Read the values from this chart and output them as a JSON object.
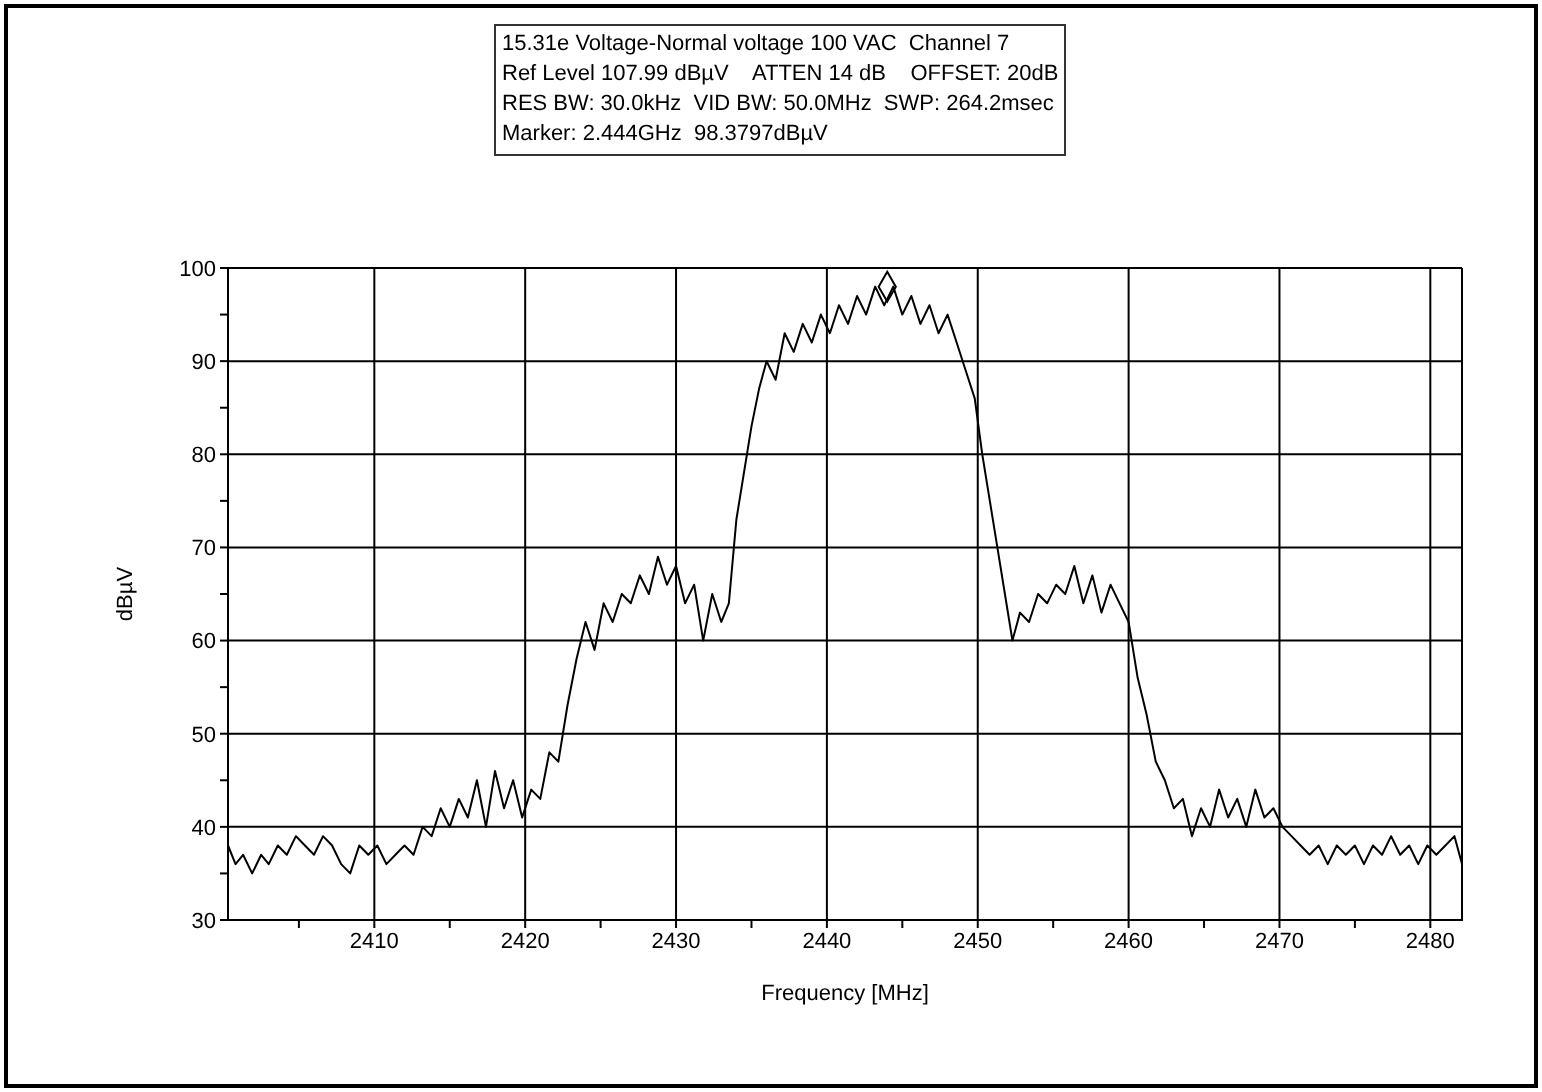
{
  "chart_data": {
    "type": "line",
    "title": "15.31e Voltage-Normal voltage 100 VAC  Channel 7",
    "annotations": [
      "Ref Level 107.99 dBµV    ATTEN 14 dB    OFFSET: 20dB",
      "RES BW: 30.0kHz  VID BW: 50.0MHz  SWP: 264.2msec",
      "Marker: 2.444GHz  98.3797dBµV"
    ],
    "xlabel": "Frequency [MHz]",
    "ylabel": "dBµV",
    "xlim": [
      2400.3,
      2482.1
    ],
    "ylim": [
      30,
      100
    ],
    "xticks": [
      {
        "value": 2405,
        "label": null
      },
      2410,
      {
        "value": 2415,
        "label": null
      },
      2420,
      {
        "value": 2425,
        "label": null
      },
      2430,
      {
        "value": 2435,
        "label": null
      },
      2440,
      {
        "value": 2445,
        "label": null
      },
      2450,
      {
        "value": 2455,
        "label": null
      },
      2460,
      {
        "value": 2465,
        "label": null
      },
      2470,
      {
        "value": 2475,
        "label": null
      },
      2480
    ],
    "yticks": [
      30,
      {
        "value": 35,
        "label": null
      },
      40,
      {
        "value": 45,
        "label": null
      },
      50,
      {
        "value": 55,
        "label": null
      },
      60,
      {
        "value": 65,
        "label": null
      },
      70,
      {
        "value": 75,
        "label": null
      },
      80,
      {
        "value": 85,
        "label": null
      },
      90,
      {
        "value": 95,
        "label": null
      },
      100
    ],
    "grid": true,
    "series": [
      {
        "color": "#000000",
        "marker": "none",
        "x": [
          2400.3,
          2400.8,
          2401.3,
          2401.9,
          2402.5,
          2403.0,
          2403.6,
          2404.2,
          2404.8,
          2405.4,
          2406.0,
          2406.6,
          2407.2,
          2407.8,
          2408.4,
          2409.0,
          2409.6,
          2410.2,
          2410.8,
          2411.4,
          2412.0,
          2412.6,
          2413.2,
          2413.8,
          2414.4,
          2415.0,
          2415.6,
          2416.2,
          2416.8,
          2417.4,
          2418.0,
          2418.6,
          2419.2,
          2419.8,
          2420.4,
          2421.0,
          2421.6,
          2422.2,
          2422.8,
          2423.4,
          2424.0,
          2424.6,
          2425.2,
          2425.8,
          2426.4,
          2427.0,
          2427.6,
          2428.2,
          2428.8,
          2429.4,
          2430.0,
          2430.6,
          2431.2,
          2431.8,
          2432.4,
          2433.0,
          2433.5,
          2434.0,
          2434.5,
          2435.0,
          2435.5,
          2436.0,
          2436.6,
          2437.2,
          2437.8,
          2438.4,
          2439.0,
          2439.6,
          2440.2,
          2440.8,
          2441.4,
          2442.0,
          2442.6,
          2443.2,
          2443.8,
          2444.4,
          2445.0,
          2445.6,
          2446.2,
          2446.8,
          2447.4,
          2448.0,
          2448.6,
          2449.2,
          2449.8,
          2450.3,
          2450.8,
          2451.3,
          2451.8,
          2452.3,
          2452.8,
          2453.4,
          2454.0,
          2454.6,
          2455.2,
          2455.8,
          2456.4,
          2457.0,
          2457.6,
          2458.2,
          2458.8,
          2459.4,
          2460.0,
          2460.6,
          2461.2,
          2461.8,
          2462.4,
          2463.0,
          2463.6,
          2464.2,
          2464.8,
          2465.4,
          2466.0,
          2466.6,
          2467.2,
          2467.8,
          2468.4,
          2469.0,
          2469.6,
          2470.2,
          2470.8,
          2471.4,
          2472.0,
          2472.6,
          2473.2,
          2473.8,
          2474.4,
          2475.0,
          2475.6,
          2476.2,
          2476.8,
          2477.4,
          2478.0,
          2478.6,
          2479.2,
          2479.8,
          2480.4,
          2481.0,
          2481.6,
          2482.1
        ],
        "values": [
          38,
          36,
          37,
          35,
          37,
          36,
          38,
          37,
          39,
          38,
          37,
          39,
          38,
          36,
          35,
          38,
          37,
          38,
          36,
          37,
          38,
          37,
          40,
          39,
          42,
          40,
          43,
          41,
          45,
          40,
          46,
          42,
          45,
          41,
          44,
          43,
          48,
          47,
          53,
          58,
          62,
          59,
          64,
          62,
          65,
          64,
          67,
          65,
          69,
          66,
          68,
          64,
          66,
          60,
          65,
          62,
          64,
          73,
          78,
          83,
          87,
          90,
          88,
          93,
          91,
          94,
          92,
          95,
          93,
          96,
          94,
          97,
          95,
          98,
          96,
          98,
          95,
          97,
          94,
          96,
          93,
          95,
          92,
          89,
          86,
          80,
          75,
          70,
          65,
          60,
          63,
          62,
          65,
          64,
          66,
          65,
          68,
          64,
          67,
          63,
          66,
          64,
          62,
          56,
          52,
          47,
          45,
          42,
          43,
          39,
          42,
          40,
          44,
          41,
          43,
          40,
          44,
          41,
          42,
          40,
          39,
          38,
          37,
          38,
          36,
          38,
          37,
          38,
          36,
          38,
          37,
          39,
          37,
          38,
          36,
          38,
          37,
          38,
          39,
          36
        ]
      },
      {
        "type": "scatter",
        "color": "#000000",
        "marker": "diamond",
        "x": [
          2444
        ],
        "values": [
          98
        ]
      }
    ]
  }
}
